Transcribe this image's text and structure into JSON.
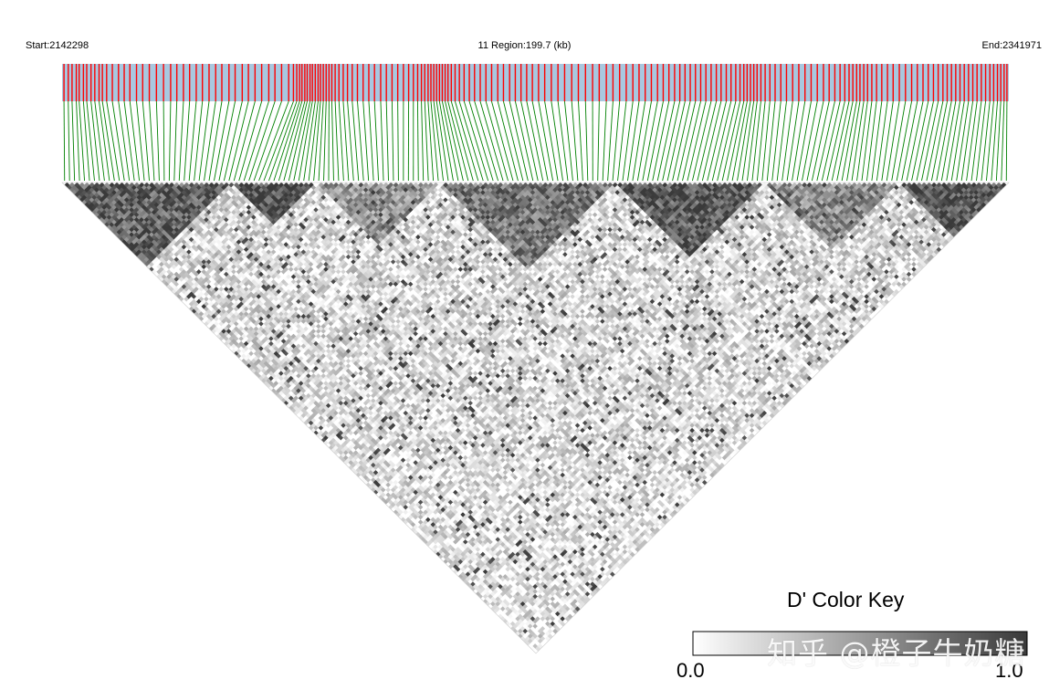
{
  "chart_data": {
    "type": "heatmap",
    "title": "",
    "start_label": "Start:2142298",
    "region_label": "11 Region:199.7 (kb)",
    "end_label": "End:2341971",
    "region": {
      "chromosome": "11",
      "start_bp": 2142298,
      "end_bp": 2341971,
      "length_kb": 199.7
    },
    "value_measure": "D'",
    "color_key": {
      "title": "D' Color Key",
      "min_label": "0.0",
      "max_label": "1.0",
      "min": 0.0,
      "max": 1.0,
      "low_color": "#ffffff",
      "high_color": "#3a3a3a"
    },
    "snp_track_colors": {
      "background": "#a8c8e0",
      "marker": "#ff0000",
      "connector": "#008000"
    },
    "snp_positions_kb": [
      0.4,
      1.3,
      2.1,
      3.0,
      3.6,
      4.5,
      5.2,
      6.1,
      6.9,
      7.8,
      8.5,
      9.4,
      10.6,
      11.9,
      13.1,
      14.3,
      15.7,
      17.0,
      18.4,
      19.9,
      21.4,
      22.9,
      24.2,
      25.6,
      26.9,
      28.3,
      29.6,
      31.0,
      32.4,
      33.7,
      35.2,
      36.5,
      38.0,
      39.3,
      40.7,
      42.1,
      43.6,
      44.9,
      46.3,
      47.8,
      48.8,
      49.5,
      50.1,
      50.6,
      51.2,
      51.7,
      52.3,
      52.8,
      53.4,
      54.0,
      54.5,
      55.1,
      55.7,
      56.3,
      56.9,
      57.6,
      58.4,
      59.3,
      60.2,
      61.2,
      62.3,
      63.5,
      64.7,
      65.9,
      67.2,
      68.4,
      69.6,
      70.8,
      72.0,
      73.1,
      74.1,
      75.0,
      75.8,
      76.5,
      77.2,
      77.8,
      78.4,
      79.0,
      79.6,
      80.2,
      80.8,
      81.4,
      82.1,
      82.9,
      83.8,
      84.8,
      85.9,
      87.0,
      88.2,
      89.4,
      90.6,
      91.9,
      93.1,
      94.4,
      95.6,
      96.8,
      98.0,
      99.2,
      100.5,
      101.8,
      103.2,
      104.6,
      106.0,
      107.5,
      108.9,
      110.4,
      111.9,
      113.3,
      114.8,
      116.2,
      117.6,
      119.0,
      120.4,
      121.7,
      123.0,
      124.3,
      125.6,
      126.8,
      128.0,
      129.2,
      130.3,
      131.4,
      132.5,
      133.6,
      134.7,
      135.8,
      136.9,
      138.0,
      139.0,
      140.1,
      141.1,
      142.1,
      143.0,
      143.8,
      144.5,
      145.2,
      145.9,
      146.6,
      147.4,
      148.3,
      149.3,
      150.4,
      151.6,
      152.8,
      154.1,
      155.4,
      156.7,
      158.0,
      159.3,
      160.6,
      161.8,
      163.0,
      164.1,
      165.1,
      166.0,
      166.8,
      167.6,
      168.3,
      169.1,
      169.9,
      170.8,
      171.8,
      172.9,
      174.1,
      175.3,
      176.6,
      177.9,
      179.2,
      180.4,
      181.6,
      182.7,
      183.8,
      184.8,
      185.8,
      186.7,
      187.6,
      188.5,
      189.4,
      190.3,
      191.2,
      192.1,
      193.0,
      193.9,
      194.8,
      195.7,
      196.5,
      197.3,
      198.0,
      198.7,
      199.3
    ],
    "ld_blocks": [
      {
        "from_kb": 0.0,
        "to_kb": 40.0,
        "mean_d_prime": 0.82
      },
      {
        "from_kb": 40.0,
        "to_kb": 55.0,
        "mean_d_prime": 0.9
      },
      {
        "from_kb": 55.0,
        "to_kb": 78.0,
        "mean_d_prime": 0.55
      },
      {
        "from_kb": 78.0,
        "to_kb": 118.0,
        "mean_d_prime": 0.7
      },
      {
        "from_kb": 118.0,
        "to_kb": 150.0,
        "mean_d_prime": 0.85
      },
      {
        "from_kb": 150.0,
        "to_kb": 180.0,
        "mean_d_prime": 0.6
      },
      {
        "from_kb": 180.0,
        "to_kb": 199.7,
        "mean_d_prime": 0.88
      }
    ],
    "background_d_prime": 0.2
  },
  "watermark": "知乎 @橙子牛奶糖"
}
